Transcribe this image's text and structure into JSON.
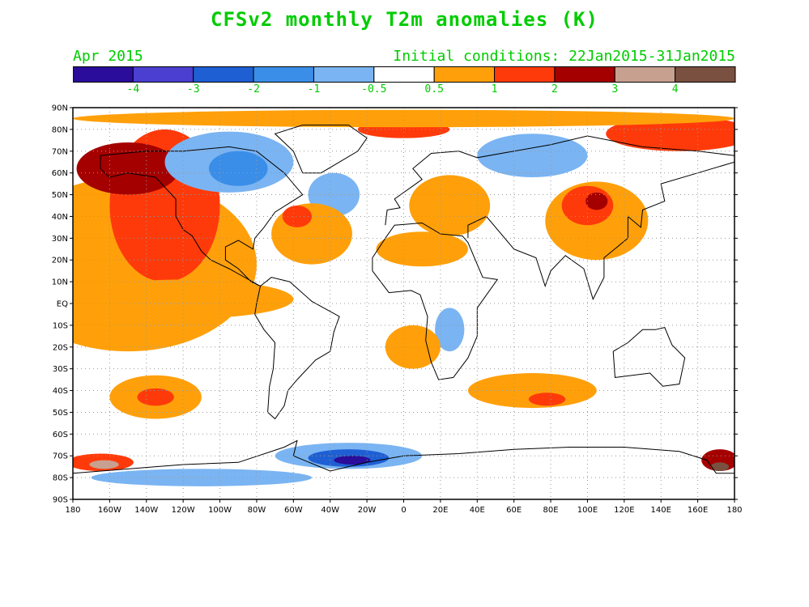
{
  "title": "CFSv2 monthly T2m anomalies (K)",
  "subtitle_left": "Apr 2015",
  "subtitle_right": "Initial conditions: 22Jan2015-31Jan2015",
  "colors": {
    "lt_-4": "#2a0d9a",
    "-4_-3": "#4a3fd0",
    "-3_-2": "#1e5fd4",
    "-2_-1": "#3a8ee8",
    "-1_-0.5": "#7ab4f2",
    "-0.5_0.5": "#ffffff",
    "0.5_1": "#ffa00a",
    "1_2": "#ff3a0a",
    "2_3": "#a50000",
    "3_4": "#c8a090",
    "gt_4": "#7a5040"
  },
  "colorbar_labels": [
    "-4",
    "-3",
    "-2",
    "-1",
    "-0.5",
    "0.5",
    "1",
    "2",
    "3",
    "4"
  ],
  "lat_labels": [
    "90N",
    "80N",
    "70N",
    "60N",
    "50N",
    "40N",
    "30N",
    "20N",
    "10N",
    "EQ",
    "10S",
    "20S",
    "30S",
    "40S",
    "50S",
    "60S",
    "70S",
    "80S",
    "90S"
  ],
  "lon_labels": [
    "180",
    "160W",
    "140W",
    "120W",
    "100W",
    "80W",
    "60W",
    "40W",
    "20W",
    "0",
    "20E",
    "40E",
    "60E",
    "80E",
    "100E",
    "120E",
    "140E",
    "160E",
    "180"
  ],
  "regions": [
    {
      "name": "pacific-warm-band",
      "lon": -150,
      "lat": 18,
      "w": 70,
      "h": 40,
      "level": "0.5_1"
    },
    {
      "name": "north-pacific-warm",
      "lon": -130,
      "lat": 45,
      "w": 30,
      "h": 35,
      "level": "1_2"
    },
    {
      "name": "alaska-warm",
      "lon": -150,
      "lat": 62,
      "w": 28,
      "h": 12,
      "level": "2_3"
    },
    {
      "name": "arctic-canada-cool",
      "lon": -95,
      "lat": 65,
      "w": 35,
      "h": 14,
      "level": "-1_-0.5"
    },
    {
      "name": "arctic-canada-cooler",
      "lon": -90,
      "lat": 62,
      "w": 16,
      "h": 8,
      "level": "-2_-1"
    },
    {
      "name": "north-atlantic-cool",
      "lon": -38,
      "lat": 50,
      "w": 14,
      "h": 10,
      "level": "-1_-0.5"
    },
    {
      "name": "atlantic-warm",
      "lon": -50,
      "lat": 32,
      "w": 22,
      "h": 14,
      "level": "0.5_1"
    },
    {
      "name": "atlantic-warm-core",
      "lon": -58,
      "lat": 40,
      "w": 8,
      "h": 5,
      "level": "1_2"
    },
    {
      "name": "siberia-cool",
      "lon": 70,
      "lat": 68,
      "w": 30,
      "h": 10,
      "level": "-1_-0.5"
    },
    {
      "name": "europe-warm",
      "lon": 25,
      "lat": 45,
      "w": 22,
      "h": 14,
      "level": "0.5_1"
    },
    {
      "name": "north-africa-warm",
      "lon": 10,
      "lat": 25,
      "w": 25,
      "h": 8,
      "level": "0.5_1"
    },
    {
      "name": "east-asia-warm",
      "lon": 105,
      "lat": 38,
      "w": 28,
      "h": 18,
      "level": "0.5_1"
    },
    {
      "name": "east-asia-hot",
      "lon": 100,
      "lat": 45,
      "w": 14,
      "h": 9,
      "level": "1_2"
    },
    {
      "name": "east-asia-core",
      "lon": 105,
      "lat": 47,
      "w": 6,
      "h": 4,
      "level": "2_3"
    },
    {
      "name": "east-pacific-eq-warm",
      "lon": -120,
      "lat": 2,
      "w": 60,
      "h": 9,
      "level": "0.5_1"
    },
    {
      "name": "south-pacific-warm",
      "lon": -135,
      "lat": -43,
      "w": 25,
      "h": 10,
      "level": "0.5_1"
    },
    {
      "name": "south-pacific-core",
      "lon": -135,
      "lat": -43,
      "w": 10,
      "h": 4,
      "level": "1_2"
    },
    {
      "name": "south-indian-warm",
      "lon": 70,
      "lat": -40,
      "w": 35,
      "h": 8,
      "level": "0.5_1"
    },
    {
      "name": "south-indian-core",
      "lon": 78,
      "lat": -44,
      "w": 10,
      "h": 3,
      "level": "1_2"
    },
    {
      "name": "africa-cool",
      "lon": 25,
      "lat": -12,
      "w": 8,
      "h": 10,
      "level": "-1_-0.5"
    },
    {
      "name": "indian-ocean-warm",
      "lon": 5,
      "lat": -20,
      "w": 15,
      "h": 10,
      "level": "0.5_1"
    },
    {
      "name": "antarctic-atlantic-cool",
      "lon": -30,
      "lat": -70,
      "w": 40,
      "h": 6,
      "level": "-1_-0.5"
    },
    {
      "name": "antarctic-atlantic-cold",
      "lon": -30,
      "lat": -71,
      "w": 22,
      "h": 4,
      "level": "-3_-2"
    },
    {
      "name": "antarctic-atlantic-core",
      "lon": -28,
      "lat": -72,
      "w": 10,
      "h": 2,
      "level": "lt_-4"
    },
    {
      "name": "ross-sea-warm",
      "lon": -165,
      "lat": -73,
      "w": 18,
      "h": 4,
      "level": "1_2"
    },
    {
      "name": "ross-sea-core",
      "lon": -163,
      "lat": -74,
      "w": 8,
      "h": 2,
      "level": "3_4"
    },
    {
      "name": "bellingshausen-cool",
      "lon": -110,
      "lat": -80,
      "w": 60,
      "h": 4,
      "level": "-1_-0.5"
    },
    {
      "name": "new-zealand-sector-warm",
      "lon": 172,
      "lat": -72,
      "w": 10,
      "h": 5,
      "level": "2_3"
    },
    {
      "name": "new-zealand-sector-core",
      "lon": 172,
      "lat": -75,
      "w": 5,
      "h": 2,
      "level": "gt_4"
    },
    {
      "name": "arctic-north-warm",
      "lon": 150,
      "lat": 78,
      "w": 40,
      "h": 8,
      "level": "1_2"
    },
    {
      "name": "arctic-north-warm2",
      "lon": 0,
      "lat": 80,
      "w": 25,
      "h": 4,
      "level": "1_2"
    },
    {
      "name": "arctic-warm-band",
      "lon": 0,
      "lat": 85,
      "w": 180,
      "h": 4,
      "level": "0.5_1"
    }
  ]
}
